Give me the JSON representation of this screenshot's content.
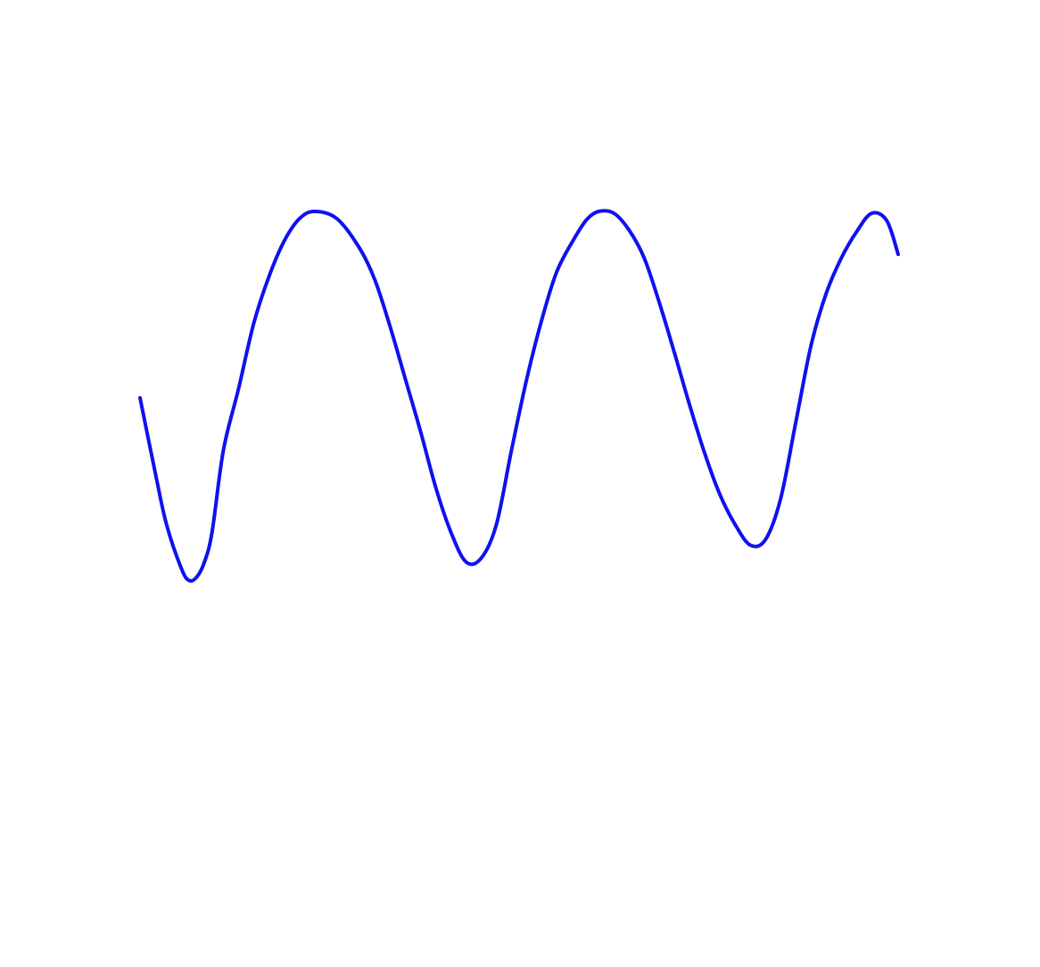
{
  "chart_data": {
    "type": "line",
    "axes_visible": false,
    "grid": false,
    "legend": "none",
    "xlim": [
      0,
      1
    ],
    "ylim": [
      -1,
      1
    ],
    "series": [
      {
        "color": "#1010f0",
        "x": [
          0.0,
          0.02,
          0.035,
          0.055,
          0.065,
          0.075,
          0.085,
          0.095,
          0.11,
          0.13,
          0.15,
          0.17,
          0.19,
          0.21,
          0.23,
          0.26,
          0.29,
          0.31,
          0.33,
          0.35,
          0.37,
          0.39,
          0.41,
          0.43,
          0.45,
          0.47,
          0.49,
          0.51,
          0.53,
          0.55,
          0.575,
          0.59,
          0.605,
          0.625,
          0.645,
          0.665,
          0.685,
          0.705,
          0.725,
          0.745,
          0.765,
          0.785,
          0.805,
          0.825,
          0.845,
          0.865,
          0.885,
          0.905,
          0.925,
          0.945,
          0.965,
          0.985,
          1.0
        ],
        "y": [
          0.0,
          -0.4,
          -0.68,
          -0.92,
          -0.98,
          -0.96,
          -0.88,
          -0.72,
          -0.28,
          0.05,
          0.4,
          0.65,
          0.84,
          0.96,
          1.0,
          0.96,
          0.8,
          0.63,
          0.38,
          0.1,
          -0.18,
          -0.48,
          -0.72,
          -0.88,
          -0.86,
          -0.68,
          -0.28,
          0.1,
          0.42,
          0.68,
          0.87,
          0.96,
          1.0,
          0.99,
          0.9,
          0.75,
          0.51,
          0.24,
          -0.04,
          -0.3,
          -0.52,
          -0.68,
          -0.79,
          -0.76,
          -0.54,
          -0.13,
          0.28,
          0.56,
          0.75,
          0.89,
          0.99,
          0.95,
          0.77
        ]
      }
    ]
  }
}
